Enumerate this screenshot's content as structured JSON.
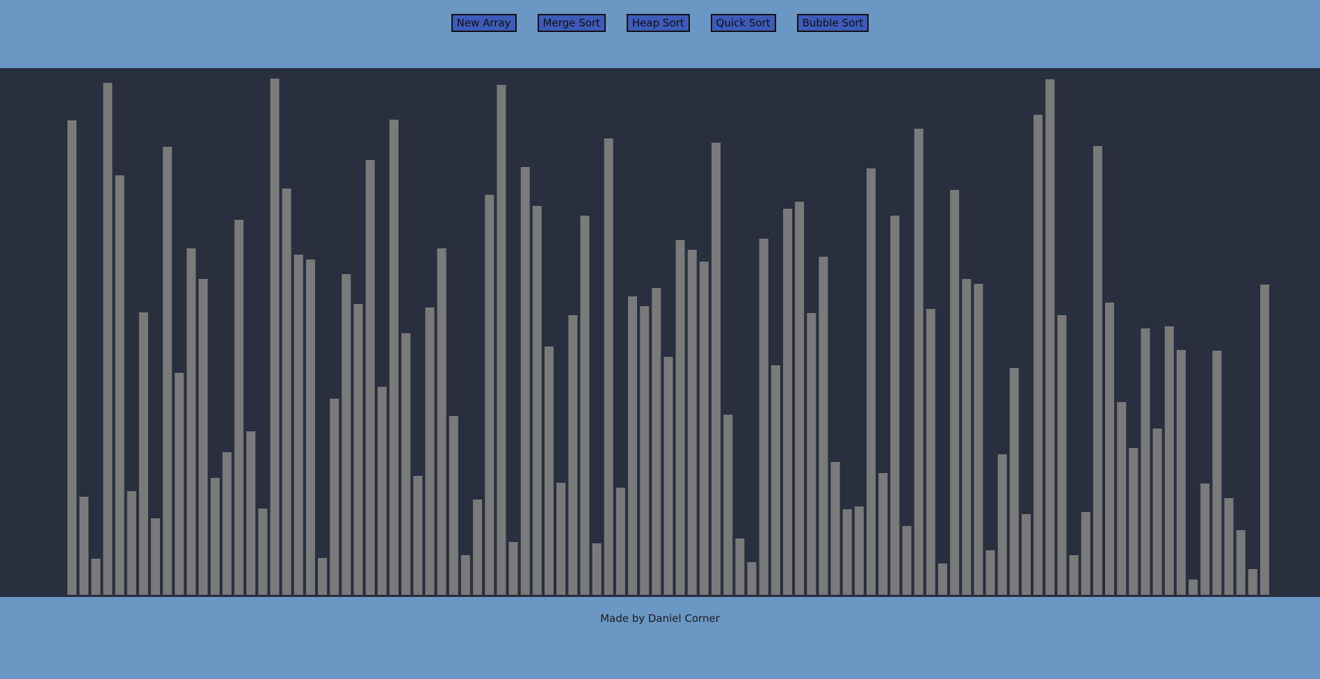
{
  "toolbar": {
    "buttons": [
      {
        "id": "new-array",
        "label": "New Array"
      },
      {
        "id": "merge-sort",
        "label": "Merge Sort"
      },
      {
        "id": "heap-sort",
        "label": "Heap Sort"
      },
      {
        "id": "quick-sort",
        "label": "Quick Sort"
      },
      {
        "id": "bubble-sort",
        "label": "Bubble Sort"
      }
    ]
  },
  "footer": {
    "credit": "Made by Daniel Corner"
  },
  "colors": {
    "background": "#6a97c4",
    "stage": "#2a2f3f",
    "bar": "#7a7a7a",
    "button": "#3d5bb8"
  },
  "array": {
    "values": [
      682,
      141,
      52,
      736,
      603,
      149,
      406,
      110,
      644,
      319,
      498,
      454,
      168,
      205,
      539,
      235,
      124,
      742,
      584,
      489,
      482,
      53,
      282,
      461,
      418,
      625,
      299,
      683,
      376,
      171,
      413,
      498,
      257,
      57,
      137,
      575,
      733,
      76,
      615,
      559,
      357,
      161,
      402,
      545,
      74,
      656,
      154,
      429,
      415,
      441,
      342,
      510,
      496,
      479,
      650,
      259,
      81,
      47,
      512,
      330,
      555,
      565,
      405,
      486,
      191,
      123,
      127,
      613,
      175,
      545,
      99,
      670,
      411,
      45,
      582,
      454,
      447,
      64,
      202,
      326,
      116,
      690,
      741,
      402,
      57,
      119,
      645,
      420,
      277,
      211,
      383,
      239,
      386,
      352,
      22,
      160,
      351,
      139,
      93,
      37,
      446
    ]
  }
}
